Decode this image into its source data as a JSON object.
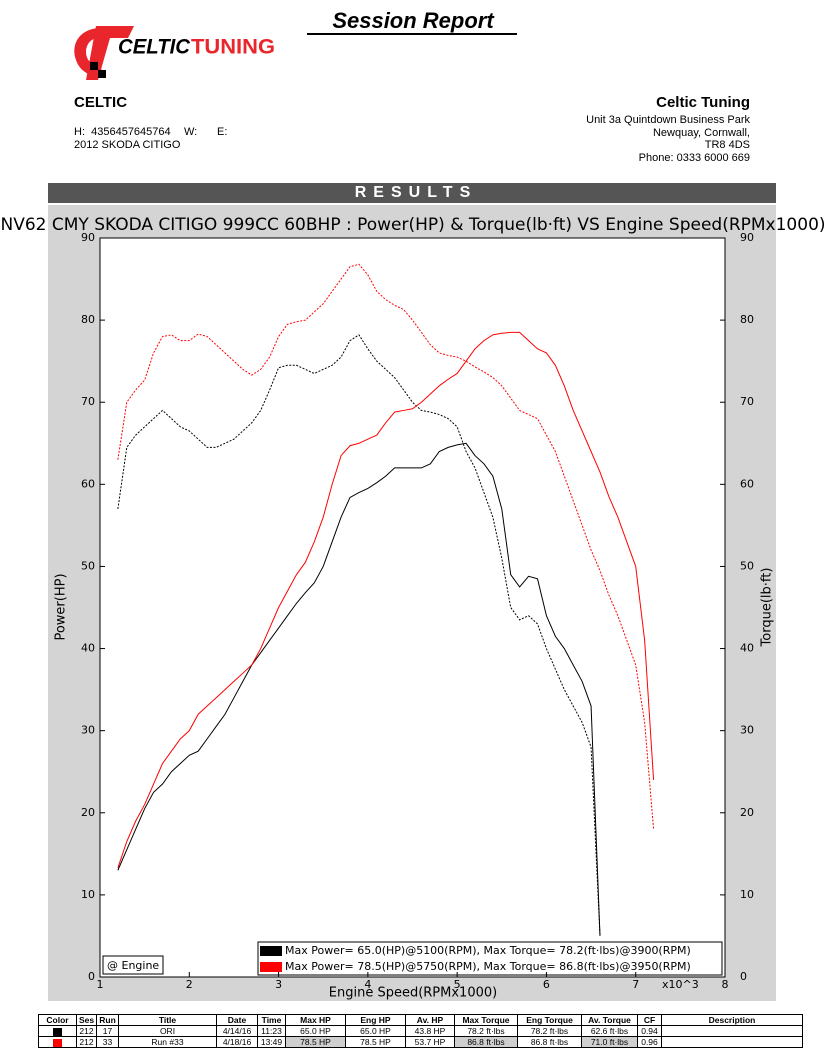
{
  "header": {
    "title": "Session Report",
    "logo": [
      "CELTIC",
      "TUNING"
    ],
    "section": "RESULTS",
    "customer": {
      "name": "CELTIC",
      "contact": [
        "H:  4356457645764",
        "W:",
        "E:"
      ],
      "vehicle": "2012 SKODA CITIGO"
    },
    "company": {
      "name": "Celtic Tuning",
      "address": [
        "Unit 3a Quintdown Business Park",
        "Newquay, Cornwall,",
        "TR8 4DS"
      ],
      "phone": "Phone: 0333 6000 669"
    }
  },
  "chart_data": {
    "type": "line",
    "title": "NV62 CMY SKODA CITIGO 999CC 60BHP : Power(HP) & Torque(lb·ft) VS Engine Speed(RPMx1000)",
    "xlabel": "Engine Speed(RPMx1000)",
    "ylabel": "Power(HP)",
    "y2label": "Torque(lb·ft)",
    "x_multiplier_label": "x10^3",
    "annotation": "@ Engine",
    "xlim": [
      1,
      8
    ],
    "xticks": [
      1,
      2,
      3,
      4,
      5,
      6,
      7,
      8
    ],
    "ylim": [
      0,
      90
    ],
    "yticks": [
      0,
      10,
      20,
      30,
      40,
      50,
      60,
      70,
      80,
      90
    ],
    "y2lim": [
      0,
      90
    ],
    "y2ticks": [
      0,
      10,
      20,
      30,
      40,
      50,
      60,
      70,
      80,
      90
    ],
    "grid": false,
    "legend_position": "lower right",
    "legend": [
      {
        "label": "Max Power= 65.0(HP)@5100(RPM), Max Torque= 78.2(ft·lbs)@3900(RPM)",
        "color": "#000000"
      },
      {
        "label": "Max Power= 78.5(HP)@5750(RPM), Max Torque= 86.8(ft·lbs)@3950(RPM)",
        "color": "#ff0000"
      }
    ],
    "x": [
      1.2,
      1.3,
      1.4,
      1.5,
      1.6,
      1.7,
      1.8,
      1.9,
      2.0,
      2.1,
      2.2,
      2.3,
      2.4,
      2.5,
      2.6,
      2.7,
      2.8,
      2.9,
      3.0,
      3.1,
      3.2,
      3.3,
      3.4,
      3.5,
      3.6,
      3.7,
      3.8,
      3.9,
      4.0,
      4.1,
      4.2,
      4.3,
      4.4,
      4.5,
      4.6,
      4.7,
      4.8,
      4.9,
      5.0,
      5.1,
      5.2,
      5.3,
      5.4,
      5.5,
      5.6,
      5.7,
      5.8,
      5.9,
      6.0,
      6.1,
      6.2,
      6.3,
      6.4,
      6.5,
      6.6,
      6.7,
      6.8,
      6.9,
      7.0,
      7.1,
      7.2
    ],
    "series": [
      {
        "color": "#000000",
        "line_style": "solid",
        "axis": "y",
        "values": [
          13,
          15.5,
          18,
          20.5,
          22.5,
          23.5,
          25,
          26,
          27,
          27.5,
          29,
          30.5,
          32,
          34,
          36,
          38,
          39.5,
          41,
          42.5,
          44,
          45.5,
          46.8,
          48,
          50,
          53,
          56,
          58.4,
          59,
          59.5,
          60.2,
          61,
          62,
          62,
          62,
          62,
          62.5,
          64,
          64.5,
          64.8,
          65,
          63.5,
          62.5,
          61,
          57,
          49,
          47.5,
          48.8,
          48.5,
          44,
          41.5,
          40,
          38,
          36,
          33,
          5,
          null,
          null,
          null,
          null,
          null,
          null
        ]
      },
      {
        "color": "#000000",
        "line_style": "dotted",
        "axis": "y2",
        "values": [
          57,
          64.5,
          66,
          67,
          68,
          69,
          68,
          67,
          66.5,
          65.5,
          64.5,
          64.5,
          65,
          65.5,
          66.5,
          67.5,
          69,
          71.5,
          74.2,
          74.5,
          74.5,
          74,
          73.5,
          74,
          74.5,
          75.5,
          77.5,
          78.2,
          76.5,
          75,
          74,
          73,
          71.5,
          70,
          69,
          68.8,
          68.5,
          68,
          67,
          64,
          62,
          59,
          56,
          51,
          45,
          43.5,
          44,
          43,
          40,
          37.5,
          35,
          33,
          31,
          28,
          5,
          null,
          null,
          null,
          null,
          null,
          null
        ]
      },
      {
        "color": "#ff0000",
        "line_style": "solid",
        "axis": "y",
        "values": [
          13.3,
          16.5,
          19,
          21,
          23.5,
          26,
          27.5,
          29,
          30,
          32,
          33,
          34,
          35,
          36,
          37,
          38,
          40,
          42.5,
          45,
          47,
          49,
          50.5,
          53,
          56,
          60,
          63.5,
          64.7,
          65,
          65.5,
          66,
          67.5,
          68.8,
          69,
          69.2,
          70,
          71,
          72,
          72.8,
          73.5,
          75,
          76.5,
          77.5,
          78.2,
          78.4,
          78.5,
          78.5,
          77.5,
          76.5,
          76,
          74.5,
          72,
          69,
          66.5,
          64,
          61.5,
          58.5,
          56,
          53,
          50,
          41,
          24
        ]
      },
      {
        "color": "#ff0000",
        "line_style": "dotted",
        "axis": "y2",
        "values": [
          63,
          70,
          71.5,
          72.7,
          76,
          78,
          78.2,
          77.5,
          77.5,
          78.3,
          78,
          77,
          76,
          75,
          74,
          73.3,
          74,
          75.5,
          78,
          79.5,
          79.8,
          80,
          81,
          82,
          83.5,
          85,
          86.5,
          86.8,
          85.5,
          83.5,
          82.5,
          81.8,
          81.3,
          80,
          78.5,
          77,
          76,
          75.7,
          75.5,
          75,
          74.3,
          73.7,
          73,
          72,
          70.5,
          69,
          68.5,
          68,
          66,
          64,
          61,
          58,
          55,
          52,
          49.5,
          46.5,
          44,
          41,
          38,
          31,
          18
        ]
      }
    ]
  },
  "table": {
    "columns": [
      "Color",
      "Ses",
      "Run",
      "Title",
      "Date",
      "Time",
      "Max HP",
      "Eng HP",
      "Av. HP",
      "Max Torque",
      "Eng Torque",
      "Av. Torque",
      "CF",
      "Description"
    ],
    "rows": [
      [
        "212",
        "17",
        "ORI",
        "4/14/16",
        "11:23",
        "65.0 HP",
        "65.0 HP",
        "43.8 HP",
        "78.2 ft·lbs",
        "78.2 ft·lbs",
        "62.6 ft·lbs",
        "0.94"
      ],
      [
        "212",
        "33",
        "Run #33",
        "4/18/16",
        "13:49",
        "78.5 HP",
        "78.5 HP",
        "53.7 HP",
        "86.8 ft·lbs",
        "86.8 ft·lbs",
        "71.0 ft·lbs",
        "0.96"
      ]
    ]
  }
}
